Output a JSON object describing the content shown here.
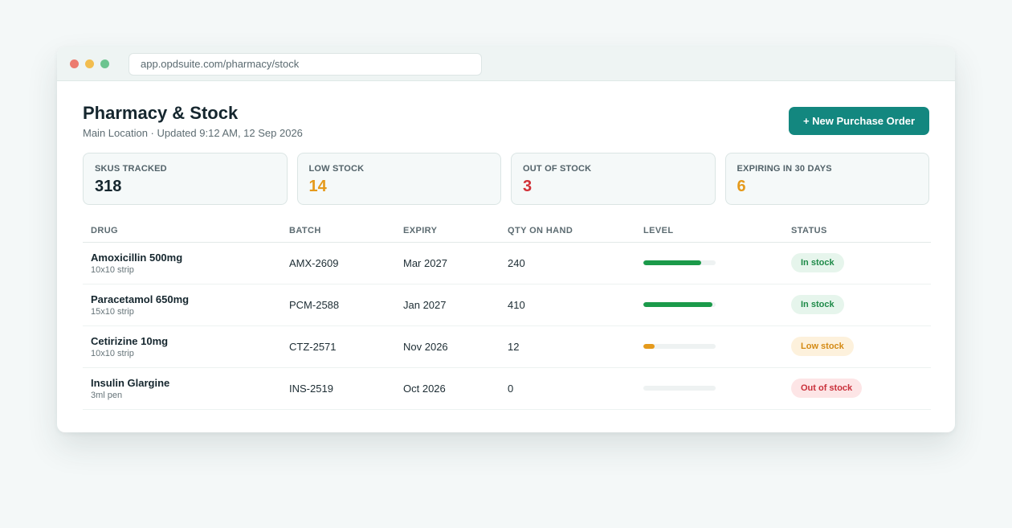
{
  "browser": {
    "url": "app.opdsuite.com/pharmacy/stock"
  },
  "header": {
    "title": "Pharmacy & Stock",
    "subtitle": "Main Location · Updated 9:12 AM, 12 Sep 2026",
    "new_po_label": "+ New Purchase Order"
  },
  "stats": [
    {
      "label": "SKUS TRACKED",
      "value": "318",
      "color": "#15262e"
    },
    {
      "label": "LOW STOCK",
      "value": "14",
      "color": "#e59a1c"
    },
    {
      "label": "OUT OF STOCK",
      "value": "3",
      "color": "#d12f36"
    },
    {
      "label": "EXPIRING IN 30 DAYS",
      "value": "6",
      "color": "#e59a1c"
    }
  ],
  "table": {
    "columns": [
      "DRUG",
      "BATCH",
      "EXPIRY",
      "QTY ON HAND",
      "LEVEL",
      "STATUS"
    ],
    "rows": [
      {
        "drug": "Amoxicillin 500mg",
        "pack": "10x10 strip",
        "batch": "AMX-2609",
        "expiry": "Mar 2027",
        "qty": "240",
        "level": 0.8,
        "level_color": "#1b9a4a",
        "status": "In stock",
        "status_kind": "in"
      },
      {
        "drug": "Paracetamol 650mg",
        "pack": "15x10 strip",
        "batch": "PCM-2588",
        "expiry": "Jan 2027",
        "qty": "410",
        "level": 0.95,
        "level_color": "#1b9a4a",
        "status": "In stock",
        "status_kind": "in"
      },
      {
        "drug": "Cetirizine 10mg",
        "pack": "10x10 strip",
        "batch": "CTZ-2571",
        "expiry": "Nov 2026",
        "qty": "12",
        "level": 0.15,
        "level_color": "#e59a1c",
        "status": "Low stock",
        "status_kind": "low"
      },
      {
        "drug": "Insulin Glargine",
        "pack": "3ml pen",
        "batch": "INS-2519",
        "expiry": "Oct 2026",
        "qty": "0",
        "level": 0,
        "level_color": "#d12f36",
        "status": "Out of stock",
        "status_kind": "out"
      }
    ]
  }
}
